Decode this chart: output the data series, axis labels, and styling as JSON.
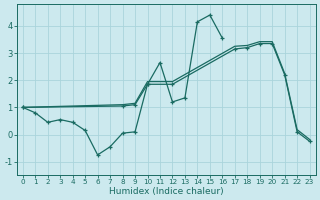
{
  "xlabel": "Humidex (Indice chaleur)",
  "bg_color": "#cce9ee",
  "grid_color": "#aad4db",
  "line_color": "#1a6b62",
  "xlim": [
    -0.5,
    23.5
  ],
  "ylim": [
    -1.5,
    4.8
  ],
  "yticks": [
    -1,
    0,
    1,
    2,
    3,
    4
  ],
  "xticks": [
    0,
    1,
    2,
    3,
    4,
    5,
    6,
    7,
    8,
    9,
    10,
    11,
    12,
    13,
    14,
    15,
    16,
    17,
    18,
    19,
    20,
    21,
    22,
    23
  ],
  "line1_x": [
    0,
    1,
    2,
    3,
    4,
    5,
    6,
    7,
    8,
    9,
    10,
    11,
    12,
    13,
    14,
    15,
    16
  ],
  "line1_y": [
    1.0,
    0.8,
    0.45,
    0.55,
    0.45,
    0.15,
    -0.75,
    -0.45,
    0.05,
    0.1,
    1.85,
    2.65,
    1.2,
    1.35,
    4.15,
    4.4,
    3.55
  ],
  "line2_x": [
    0,
    8,
    9,
    10,
    12,
    17,
    18,
    19,
    20,
    21,
    22,
    23
  ],
  "line2_y": [
    1.0,
    1.05,
    1.1,
    1.85,
    1.85,
    3.15,
    3.2,
    3.35,
    3.35,
    2.2,
    0.1,
    -0.25
  ],
  "line3_x": [
    0,
    8,
    9,
    10,
    12,
    17,
    18,
    19,
    20,
    21,
    22,
    23
  ],
  "line3_y": [
    1.0,
    1.1,
    1.15,
    1.95,
    1.95,
    3.25,
    3.28,
    3.42,
    3.42,
    2.25,
    0.18,
    -0.18
  ]
}
